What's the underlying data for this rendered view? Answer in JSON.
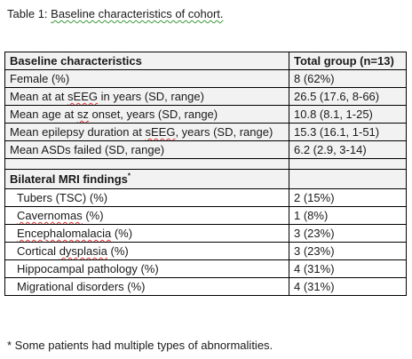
{
  "caption": {
    "prefix": "Table 1: ",
    "text": "Baseline characteristics of cohort."
  },
  "table": {
    "header": {
      "col1": "Baseline characteristics",
      "col2": "Total group (n=13)"
    },
    "rows": [
      {
        "label": "Female (%)",
        "value": "8 (62%)"
      },
      {
        "label_pre": "Mean at at ",
        "label_sq": "sEEG",
        "label_post": " in years (SD, range)",
        "value": "26.5 (17.6, 8-66)"
      },
      {
        "label_pre": "Mean age at ",
        "label_sq": "sz",
        "label_post": " onset, years (SD, range)",
        "value": "10.8 (8.1, 1-25)"
      },
      {
        "label_pre": "Mean epilepsy duration at ",
        "label_sq": "sEEG",
        "label_post": ", years (SD, range)",
        "value": "15.3 (16.1, 1-51)"
      },
      {
        "label": "Mean ASDs failed (SD, range)",
        "value": "6.2 (2.9, 3-14)"
      }
    ],
    "section": {
      "label": "Bilateral MRI findings",
      "marker": "*"
    },
    "mri_rows": [
      {
        "label": "Tubers (TSC) (%)",
        "value": "2 (15%)"
      },
      {
        "label_sq": "Cavernomas",
        "label_post": " (%)",
        "value": "1 (8%)"
      },
      {
        "label_sq": "Encephalomalacia",
        "label_post": " (%)",
        "value": "3 (23%)"
      },
      {
        "label_pre": "Cortical ",
        "label_sq": "dysplasia",
        "label_post": " (%)",
        "value": "3 (23%)"
      },
      {
        "label": "Hippocampal pathology (%)",
        "value": "4 (31%)"
      },
      {
        "label": "Migrational disorders (%)",
        "value": "4 (31%)"
      }
    ]
  },
  "footnote": "* Some patients had multiple types of abnormalities."
}
